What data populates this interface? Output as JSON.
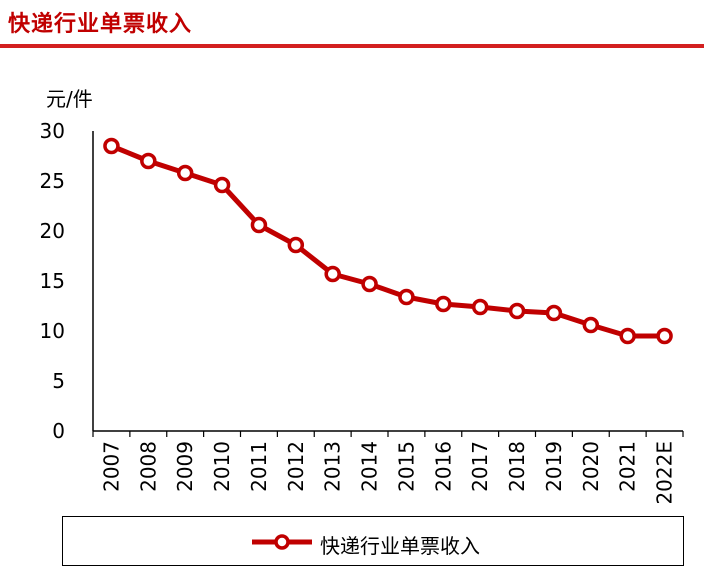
{
  "header": {
    "title": "快递行业单票收入"
  },
  "colors": {
    "accent": "#c00000",
    "line": "#c00000",
    "marker_fill": "#ffffff"
  },
  "chart_data": {
    "type": "line",
    "unit_label": "元/件",
    "categories": [
      "2007",
      "2008",
      "2009",
      "2010",
      "2011",
      "2012",
      "2013",
      "2014",
      "2015",
      "2016",
      "2017",
      "2018",
      "2019",
      "2020",
      "2021",
      "2022E"
    ],
    "series": [
      {
        "name": "快递行业单票收入",
        "values": [
          28.5,
          27.0,
          25.8,
          24.6,
          20.6,
          18.6,
          15.7,
          14.7,
          13.4,
          12.7,
          12.4,
          12.0,
          11.8,
          10.6,
          9.5,
          9.5
        ]
      }
    ],
    "yticks": [
      0,
      5,
      10,
      15,
      20,
      25,
      30
    ],
    "ylim": [
      0,
      30
    ],
    "grid": false,
    "legend_position": "bottom"
  }
}
